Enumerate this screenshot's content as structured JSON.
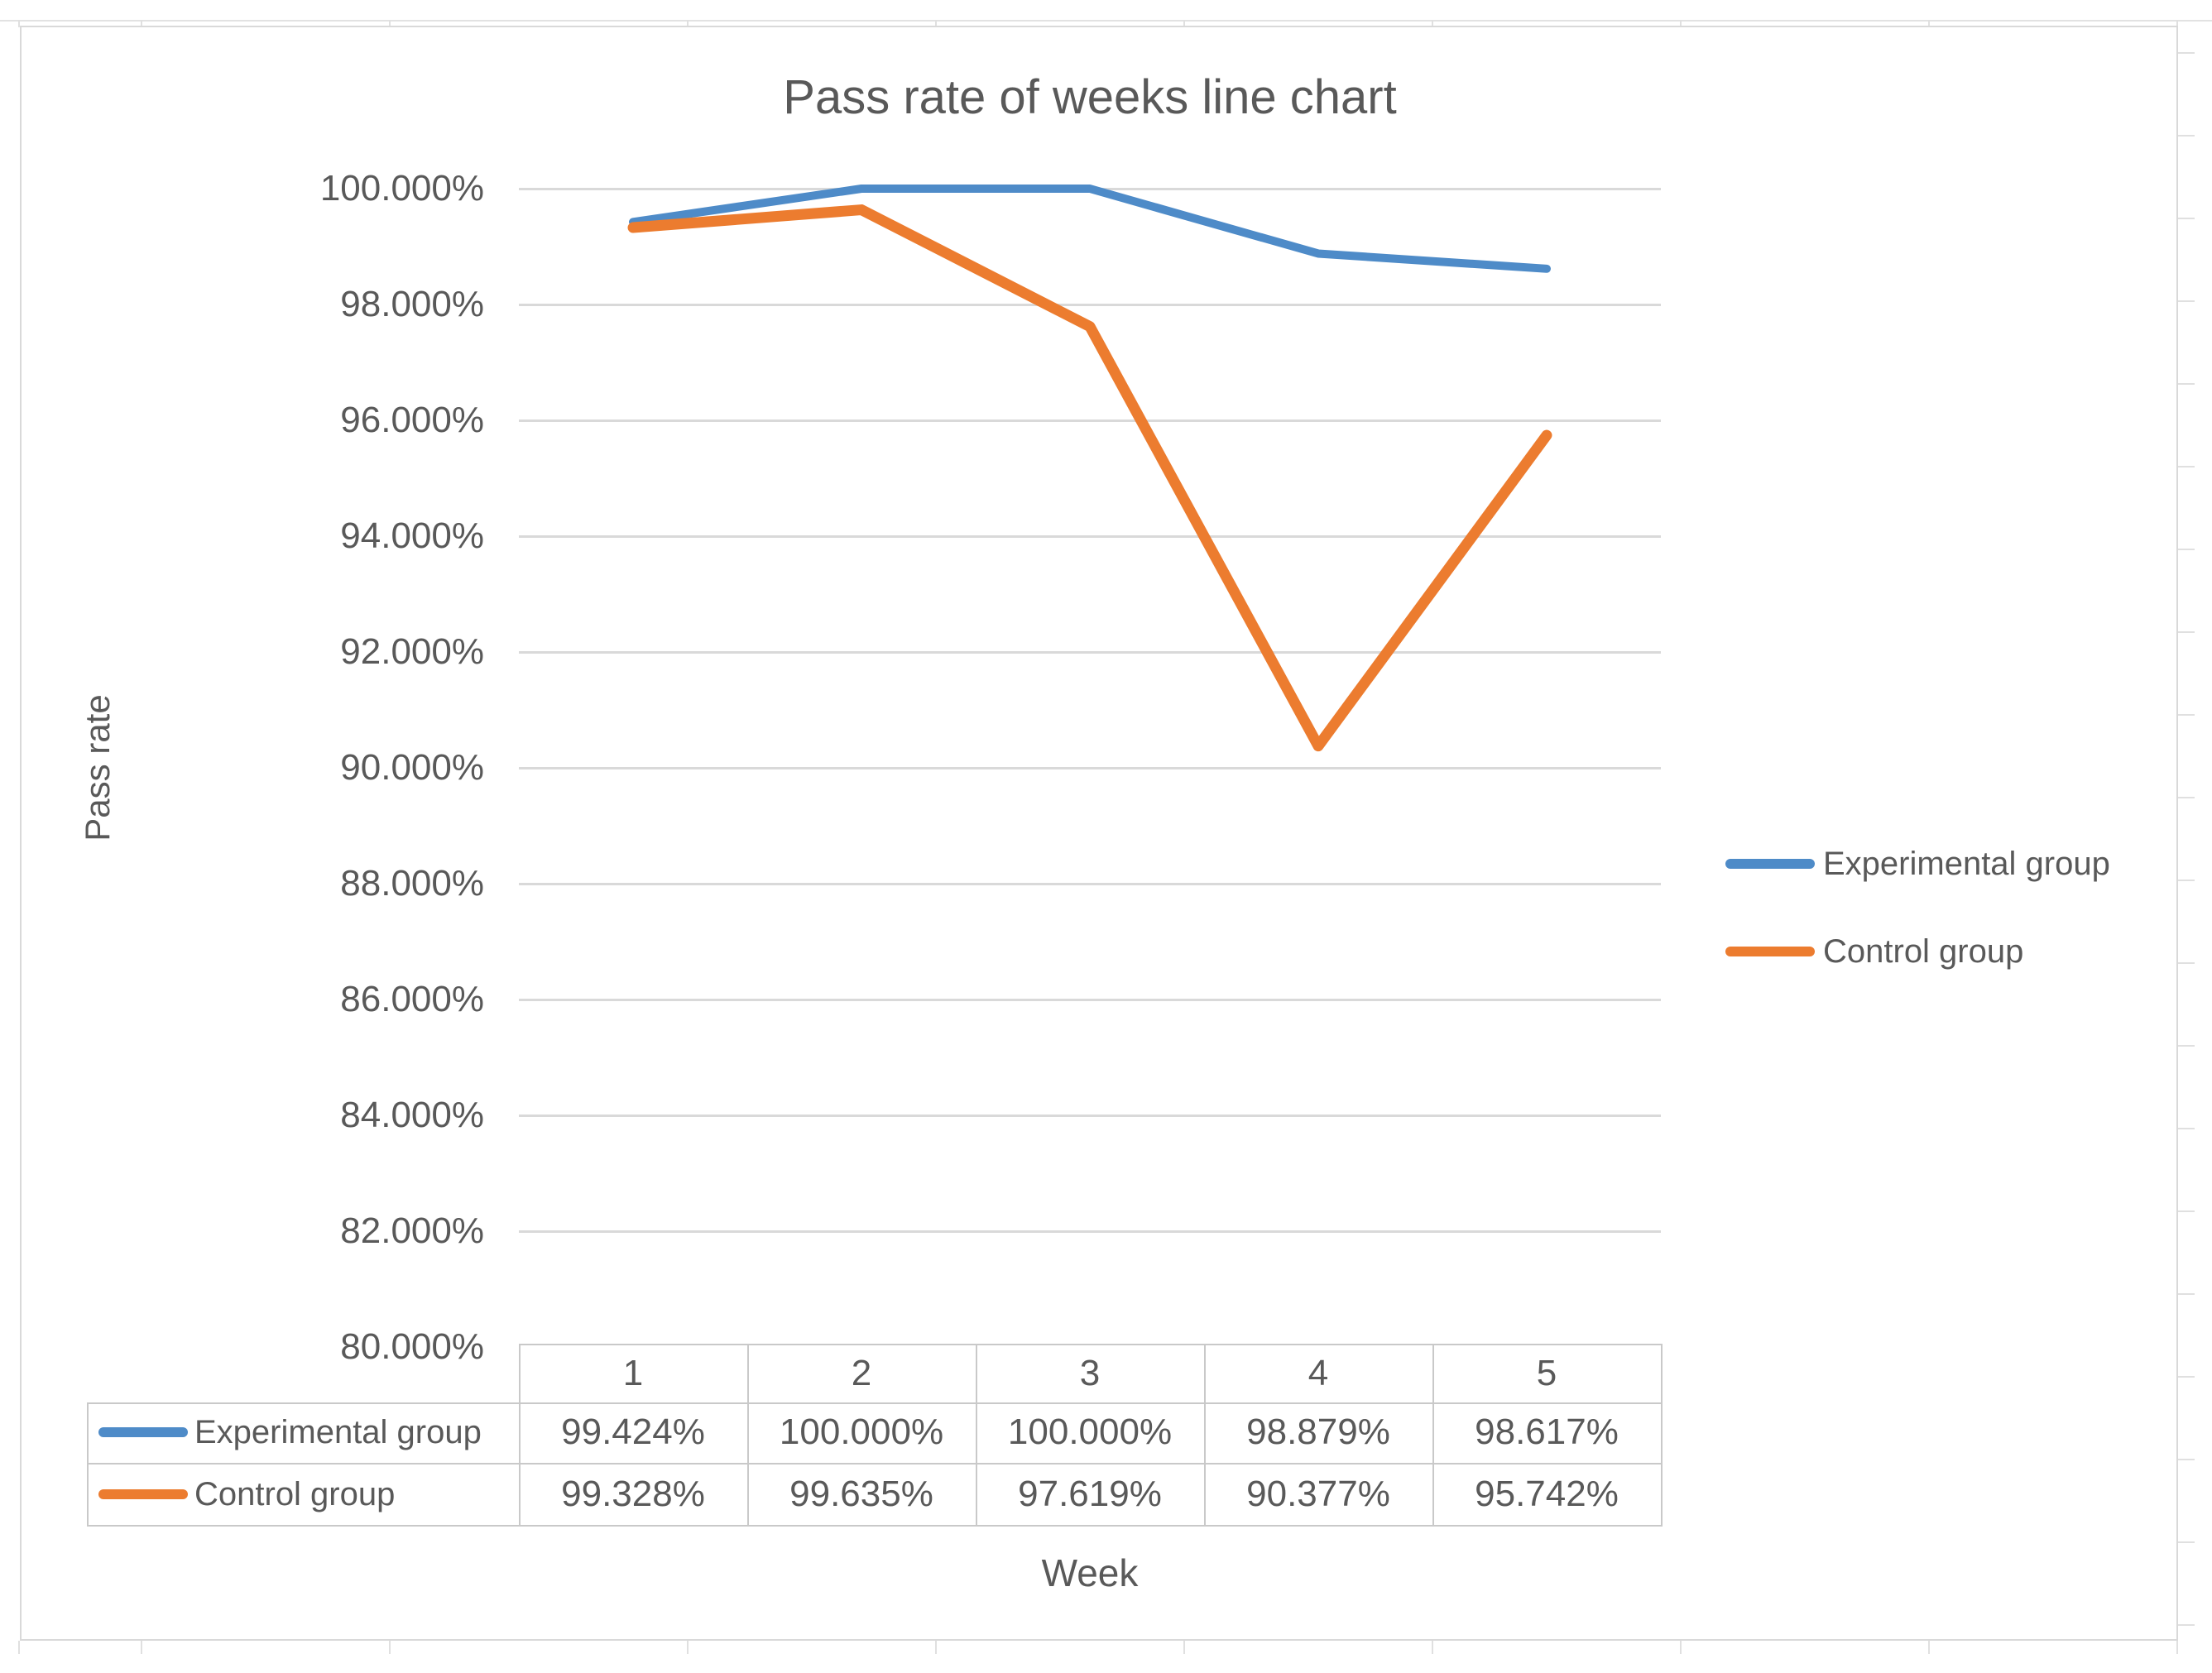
{
  "chart": {
    "title": "Pass rate of weeks line chart",
    "y_axis_title": "Pass rate",
    "x_axis_title": "Week",
    "text_color": "#595959",
    "gridline_color": "#d9d9d9",
    "frame_border_color": "#d9d9d9",
    "table_border_color": "#c9c9c9"
  },
  "chart_data": {
    "type": "line",
    "title": "Pass rate of weeks line chart",
    "xlabel": "Week",
    "ylabel": "Pass rate",
    "categories": [
      "1",
      "2",
      "3",
      "4",
      "5"
    ],
    "series": [
      {
        "name": "Experimental group",
        "color": "#4e8bc8",
        "values": [
          99.424,
          100.0,
          100.0,
          98.879,
          98.617
        ]
      },
      {
        "name": "Control group",
        "color": "#ec7c2f",
        "values": [
          99.328,
          99.635,
          97.619,
          90.377,
          95.742
        ]
      }
    ],
    "ylim": [
      80,
      100
    ],
    "ytick_step": 2,
    "ytick_labels": [
      "100.000%",
      "98.000%",
      "96.000%",
      "94.000%",
      "92.000%",
      "90.000%",
      "88.000%",
      "86.000%",
      "84.000%",
      "82.000%",
      "80.000%"
    ],
    "grid": true,
    "legend_position": "right",
    "data_table_shown": true
  },
  "table": {
    "columns": [
      "1",
      "2",
      "3",
      "4",
      "5"
    ],
    "rows": [
      {
        "label": "Experimental group",
        "values": [
          "99.424%",
          "100.000%",
          "100.000%",
          "98.879%",
          "98.617%"
        ]
      },
      {
        "label": "Control group",
        "values": [
          "99.328%",
          "99.635%",
          "97.619%",
          "90.377%",
          "95.742%"
        ]
      }
    ]
  }
}
